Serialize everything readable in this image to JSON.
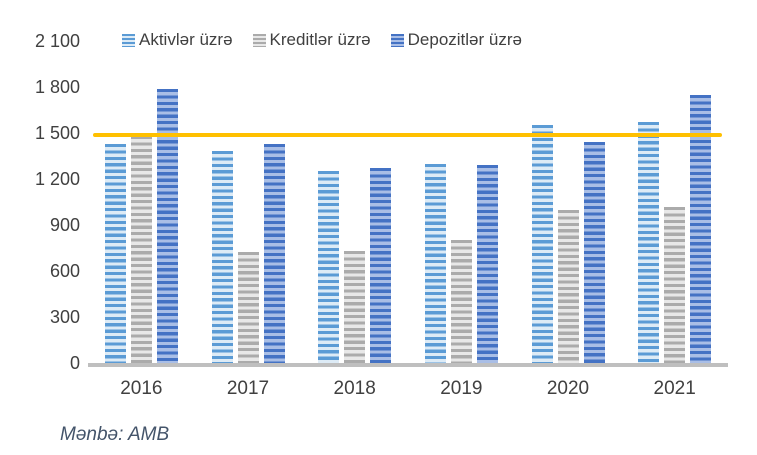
{
  "chart_data": {
    "type": "bar",
    "title": "",
    "categories": [
      "2016",
      "2017",
      "2018",
      "2019",
      "2020",
      "2021"
    ],
    "series": [
      {
        "name": "Aktivlər üzrə",
        "values": [
          1430,
          1380,
          1255,
          1300,
          1550,
          1570
        ],
        "color_dark": "#5B9BD5",
        "color_light": "#DDEBF6"
      },
      {
        "name": "Kreditlər üzrə",
        "values": [
          1480,
          725,
          730,
          805,
          1000,
          1015
        ],
        "color_dark": "#ABABAB",
        "color_light": "#E8E8E8"
      },
      {
        "name": "Depozitlər üzrə",
        "values": [
          1790,
          1430,
          1270,
          1290,
          1440,
          1750
        ],
        "color_dark": "#4472C4",
        "color_light": "#A9BEE6"
      }
    ],
    "threshold_line": {
      "value": 1490,
      "color": "#FFC000"
    },
    "y_axis": {
      "min": 0,
      "max": 2100,
      "ticks": [
        {
          "value": 0,
          "label": "0"
        },
        {
          "value": 300,
          "label": "300"
        },
        {
          "value": 600,
          "label": "600"
        },
        {
          "value": 900,
          "label": "900"
        },
        {
          "value": 1200,
          "label": "1 200"
        },
        {
          "value": 1500,
          "label": "1 500"
        },
        {
          "value": 1800,
          "label": "1 800"
        },
        {
          "value": 2100,
          "label": "2 100"
        }
      ]
    },
    "grid": false,
    "legend_position": "top",
    "bar_pattern": "horizontal-stripes",
    "source_note": "Mənbə: AMB"
  },
  "colors": {
    "background": "#FFFFFF",
    "axis_line": "#BFBFBF",
    "tick_text": "#404040",
    "source_text": "#44546A",
    "threshold": "#FFC000"
  }
}
